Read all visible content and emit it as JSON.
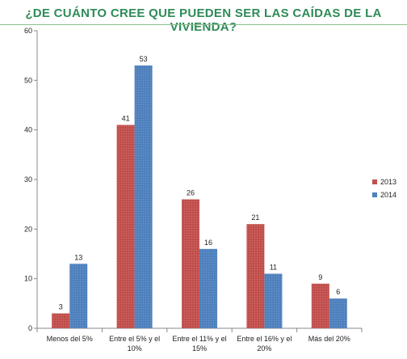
{
  "title": "¿DE CUÁNTO CREE QUE PUEDEN SER LAS CAÍDAS DE LA VIVIENDA?",
  "colors": {
    "2013": "#c0504d",
    "2014": "#4f81bd",
    "title": "#2e8b57"
  },
  "chart_data": {
    "type": "bar",
    "title": "¿DE CUÁNTO CREE QUE PUEDEN SER LAS CAÍDAS DE LA VIVIENDA?",
    "categories": [
      [
        "Menos del 5%"
      ],
      [
        "Entre el 5% y el",
        "10%"
      ],
      [
        "Entre el 11% y el",
        "15%"
      ],
      [
        "Entre el 16% y el",
        "20%"
      ],
      [
        "Más del 20%"
      ]
    ],
    "series": [
      {
        "name": "2013",
        "values": [
          3,
          41,
          26,
          21,
          9
        ]
      },
      {
        "name": "2014",
        "values": [
          13,
          53,
          16,
          11,
          6
        ]
      }
    ],
    "ylim": [
      0,
      60
    ],
    "yticks": [
      0,
      10,
      20,
      30,
      40,
      50,
      60
    ],
    "grid": false,
    "legend": "right"
  }
}
